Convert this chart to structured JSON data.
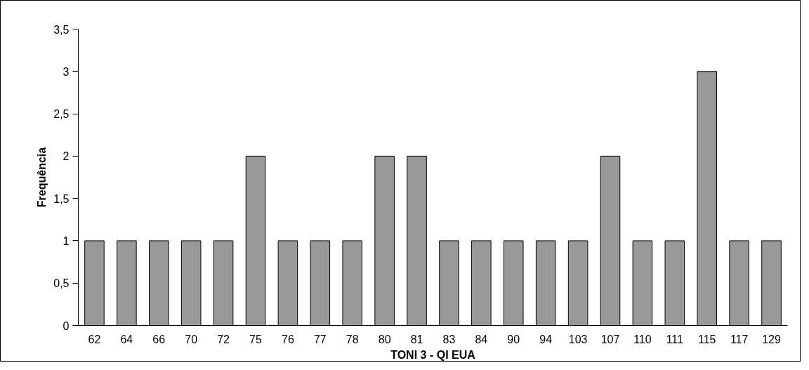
{
  "chart_data": {
    "type": "bar",
    "xlabel": "TONI 3 - QI EUA",
    "ylabel": "Frequência",
    "categories": [
      "62",
      "64",
      "66",
      "70",
      "72",
      "75",
      "76",
      "77",
      "78",
      "80",
      "81",
      "83",
      "84",
      "90",
      "94",
      "103",
      "107",
      "110",
      "111",
      "115",
      "117",
      "129"
    ],
    "values": [
      1,
      1,
      1,
      1,
      1,
      2,
      1,
      1,
      1,
      2,
      2,
      1,
      1,
      1,
      1,
      1,
      2,
      1,
      1,
      3,
      1,
      1
    ],
    "color": "#999999",
    "ylim": [
      0,
      3.5
    ],
    "yticks": [
      0,
      {
        "value": 0.5,
        "label": "0,5"
      },
      1,
      {
        "value": 1.5,
        "label": "1,5"
      },
      2,
      {
        "value": 2.5,
        "label": "2,5"
      },
      3,
      {
        "value": 3.5,
        "label": "3,5"
      }
    ],
    "grid": false
  }
}
